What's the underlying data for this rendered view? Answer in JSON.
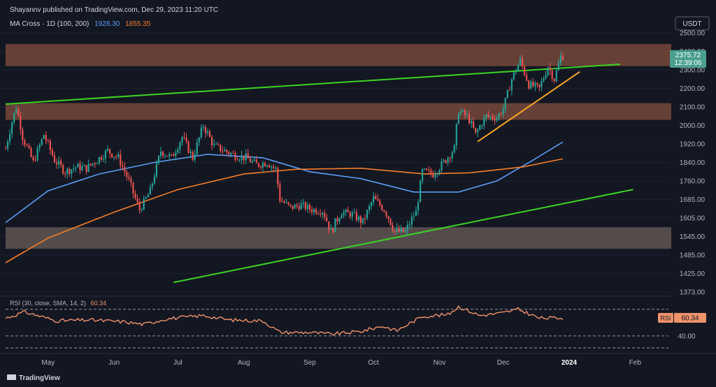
{
  "header": {
    "publisher": "Shayannv published on TradingView.com, Dec 29, 2023 11:20 UTC",
    "indicator_label": "MA Cross · 1D (100, 200)",
    "ma100_value": "1928.30",
    "ma200_value": "1855.35"
  },
  "currency": "USDT",
  "last_price": "2375.72",
  "countdown": "12:39:06",
  "footer": {
    "brand": "TradingView"
  },
  "colors": {
    "background": "#131722",
    "up": "#26a69a",
    "down": "#ef5350",
    "ma100": "#5b9cf6",
    "ma200": "#f57c2a",
    "trendline": "#3bd424",
    "triangle_line": "#f5a623",
    "zone_brown": "#7c4b3c",
    "zone_gray": "#6b5f58",
    "rsi": "#f0926a",
    "price_label_bg": "#4aa08f",
    "rsi_label_bg": "#f0926a"
  },
  "chart_data": {
    "type": "candlestick",
    "price_ticks": [
      2500,
      2400,
      2300,
      2200,
      2100,
      2000,
      1920,
      1840,
      1760,
      1685,
      1605,
      1545,
      1485,
      1425,
      1373
    ],
    "price_tick_labels": [
      "2500.00",
      "2400.00",
      "2300.00",
      "2200.00",
      "2100.00",
      "2000.00",
      "1920.00",
      "1840.00",
      "1760.00",
      "1685.00",
      "1605.00",
      "1545.00",
      "1485.00",
      "1425.00",
      "1373.00"
    ],
    "time_axis": [
      "May",
      "Jun",
      "Jul",
      "Aug",
      "Sep",
      "Oct",
      "Nov",
      "Dec",
      "2024",
      "Feb"
    ],
    "close_path": [
      [
        "2023-04-11",
        1900
      ],
      [
        "2023-04-16",
        2100
      ],
      [
        "2023-04-19",
        1950
      ],
      [
        "2023-04-24",
        1840
      ],
      [
        "2023-04-29",
        1960
      ],
      [
        "2023-05-04",
        1850
      ],
      [
        "2023-05-09",
        1800
      ],
      [
        "2023-05-14",
        1820
      ],
      [
        "2023-05-19",
        1815
      ],
      [
        "2023-05-24",
        1850
      ],
      [
        "2023-05-29",
        1890
      ],
      [
        "2023-06-03",
        1860
      ],
      [
        "2023-06-08",
        1760
      ],
      [
        "2023-06-13",
        1640
      ],
      [
        "2023-06-18",
        1720
      ],
      [
        "2023-06-23",
        1890
      ],
      [
        "2023-06-28",
        1860
      ],
      [
        "2023-07-03",
        1950
      ],
      [
        "2023-07-08",
        1860
      ],
      [
        "2023-07-13",
        2000
      ],
      [
        "2023-07-18",
        1910
      ],
      [
        "2023-07-23",
        1890
      ],
      [
        "2023-07-28",
        1870
      ],
      [
        "2023-08-02",
        1860
      ],
      [
        "2023-08-07",
        1830
      ],
      [
        "2023-08-12",
        1840
      ],
      [
        "2023-08-16",
        1810
      ],
      [
        "2023-08-18",
        1685
      ],
      [
        "2023-08-23",
        1650
      ],
      [
        "2023-08-28",
        1660
      ],
      [
        "2023-09-02",
        1640
      ],
      [
        "2023-09-07",
        1635
      ],
      [
        "2023-09-11",
        1560
      ],
      [
        "2023-09-16",
        1630
      ],
      [
        "2023-09-21",
        1620
      ],
      [
        "2023-09-26",
        1590
      ],
      [
        "2023-10-01",
        1690
      ],
      [
        "2023-10-06",
        1640
      ],
      [
        "2023-10-11",
        1560
      ],
      [
        "2023-10-16",
        1560
      ],
      [
        "2023-10-21",
        1630
      ],
      [
        "2023-10-24",
        1800
      ],
      [
        "2023-10-29",
        1790
      ],
      [
        "2023-11-03",
        1840
      ],
      [
        "2023-11-08",
        1900
      ],
      [
        "2023-11-10",
        2080
      ],
      [
        "2023-11-14",
        2050
      ],
      [
        "2023-11-18",
        1960
      ],
      [
        "2023-11-23",
        2050
      ],
      [
        "2023-11-28",
        2040
      ],
      [
        "2023-12-01",
        2090
      ],
      [
        "2023-12-05",
        2250
      ],
      [
        "2023-12-09",
        2350
      ],
      [
        "2023-12-13",
        2220
      ],
      [
        "2023-12-18",
        2200
      ],
      [
        "2023-12-22",
        2320
      ],
      [
        "2023-12-25",
        2250
      ],
      [
        "2023-12-28",
        2370
      ],
      [
        "2023-12-29",
        2376
      ]
    ],
    "ma100_path": [
      [
        "2023-04-11",
        1590
      ],
      [
        "2023-05-01",
        1720
      ],
      [
        "2023-05-25",
        1790
      ],
      [
        "2023-06-20",
        1840
      ],
      [
        "2023-07-15",
        1875
      ],
      [
        "2023-08-10",
        1860
      ],
      [
        "2023-09-01",
        1800
      ],
      [
        "2023-09-25",
        1770
      ],
      [
        "2023-10-20",
        1715
      ],
      [
        "2023-11-10",
        1715
      ],
      [
        "2023-11-28",
        1760
      ],
      [
        "2023-12-15",
        1850
      ],
      [
        "2023-12-29",
        1928.3
      ]
    ],
    "ma200_path": [
      [
        "2023-04-11",
        1460
      ],
      [
        "2023-05-01",
        1540
      ],
      [
        "2023-06-01",
        1630
      ],
      [
        "2023-07-01",
        1725
      ],
      [
        "2023-08-01",
        1790
      ],
      [
        "2023-08-25",
        1810
      ],
      [
        "2023-09-25",
        1815
      ],
      [
        "2023-10-25",
        1790
      ],
      [
        "2023-11-15",
        1795
      ],
      [
        "2023-12-10",
        1820
      ],
      [
        "2023-12-29",
        1855.35
      ]
    ],
    "zones": [
      {
        "from": 2320,
        "to": 2440,
        "color": "brown"
      },
      {
        "from": 2030,
        "to": 2120,
        "color": "brown"
      },
      {
        "from": 1505,
        "to": 1575,
        "color": "gray"
      }
    ],
    "trendlines": [
      {
        "color": "green",
        "points": [
          [
            "2023-04-11",
            2115
          ],
          [
            "2024-01-25",
            2330
          ]
        ]
      },
      {
        "color": "green",
        "points": [
          [
            "2023-06-29",
            1400
          ],
          [
            "2024-01-31",
            1725
          ]
        ]
      },
      {
        "color": "orange",
        "points": [
          [
            "2023-11-19",
            1930
          ],
          [
            "2024-01-06",
            2290
          ]
        ]
      }
    ],
    "rsi": {
      "label": "RSI (30, close, SMA, 14, 2)",
      "value": "60.34",
      "levels": [
        70,
        40
      ],
      "level_labels": [
        "40.00"
      ],
      "path": [
        [
          "2023-04-11",
          60
        ],
        [
          "2023-04-20",
          67
        ],
        [
          "2023-05-05",
          57
        ],
        [
          "2023-05-20",
          58
        ],
        [
          "2023-06-05",
          56
        ],
        [
          "2023-06-15",
          53
        ],
        [
          "2023-06-25",
          59
        ],
        [
          "2023-07-13",
          63
        ],
        [
          "2023-07-25",
          58
        ],
        [
          "2023-08-10",
          57
        ],
        [
          "2023-08-18",
          44
        ],
        [
          "2023-09-01",
          44
        ],
        [
          "2023-09-11",
          42
        ],
        [
          "2023-09-25",
          45
        ],
        [
          "2023-10-05",
          51
        ],
        [
          "2023-10-12",
          46
        ],
        [
          "2023-10-24",
          62
        ],
        [
          "2023-11-05",
          64
        ],
        [
          "2023-11-10",
          73
        ],
        [
          "2023-11-20",
          63
        ],
        [
          "2023-12-01",
          66
        ],
        [
          "2023-12-08",
          70
        ],
        [
          "2023-12-18",
          60
        ],
        [
          "2023-12-29",
          60.34
        ]
      ]
    }
  }
}
